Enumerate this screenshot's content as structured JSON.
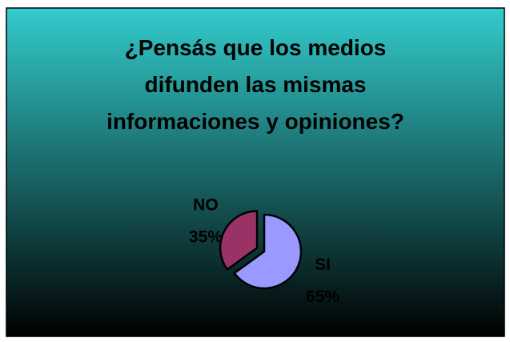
{
  "chart_data": {
    "type": "pie",
    "title": "¿Pensás que los medios difunden las mismas informaciones y opiniones?",
    "categories": [
      "SI",
      "NO"
    ],
    "values": [
      65,
      35
    ],
    "value_labels": [
      "65%",
      "35%"
    ],
    "colors": [
      "#9999ff",
      "#993366"
    ]
  }
}
